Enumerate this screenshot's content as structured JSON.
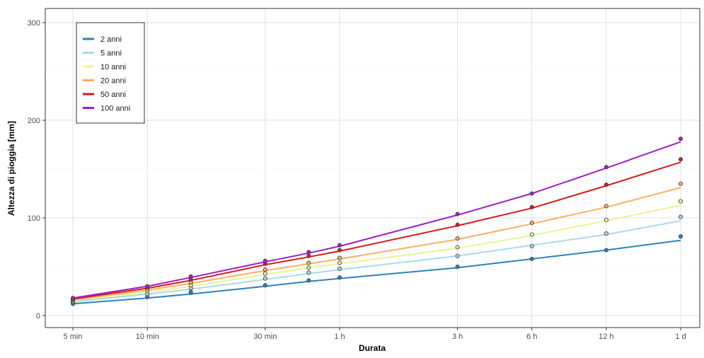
{
  "chart_data": {
    "type": "line",
    "xlabel": "Durata",
    "ylabel": "Altezza di pioggia [mm]",
    "x_scale": "log",
    "x_unit": "hours",
    "x_ticks": [
      {
        "value": 0.0833,
        "label": "5 min"
      },
      {
        "value": 0.1667,
        "label": "10 min"
      },
      {
        "value": 0.5,
        "label": "30 min"
      },
      {
        "value": 1,
        "label": "1 h"
      },
      {
        "value": 3,
        "label": "3 h"
      },
      {
        "value": 6,
        "label": "6 h"
      },
      {
        "value": 12,
        "label": "12 h"
      },
      {
        "value": 24,
        "label": "1 d"
      }
    ],
    "xlim": [
      0.0833,
      24
    ],
    "ylim": [
      0,
      300
    ],
    "y_ticks": [
      {
        "value": 0,
        "label": "0"
      },
      {
        "value": 100,
        "label": "100"
      },
      {
        "value": 200,
        "label": "200"
      },
      {
        "value": 300,
        "label": "300"
      }
    ],
    "grid": true,
    "legend_position": "top-left",
    "point_x": [
      0.0833,
      0.1667,
      0.25,
      0.5,
      0.75,
      1,
      3,
      6,
      12,
      24
    ],
    "curve_x": [
      0.0833,
      0.1667,
      0.25,
      0.5,
      0.75,
      1,
      3,
      6,
      12,
      24
    ],
    "series": [
      {
        "name": "2 anni",
        "color": "#2b83ba",
        "points": [
          12,
          19,
          24,
          31,
          36,
          39,
          50,
          58,
          67,
          81
        ],
        "curve": [
          12,
          18,
          22,
          30,
          35,
          38,
          49,
          58,
          67,
          77
        ]
      },
      {
        "name": "5 anni",
        "color": "#abd9e9",
        "points": [
          14,
          22,
          28,
          38,
          44,
          48,
          61,
          71,
          84,
          101
        ],
        "curve": [
          14,
          22,
          27,
          37,
          43,
          47,
          61,
          72,
          83,
          97
        ]
      },
      {
        "name": "10 anni",
        "color": "#e6f598",
        "points": [
          15,
          25,
          31,
          43,
          49,
          54,
          70,
          83,
          98,
          117
        ],
        "curve": [
          15,
          24,
          30,
          42,
          49,
          53,
          69,
          82,
          97,
          113
        ]
      },
      {
        "name": "20 anni",
        "color": "#fdae61",
        "points": [
          16,
          27,
          34,
          47,
          54,
          59,
          79,
          95,
          112,
          135
        ],
        "curve": [
          16,
          26,
          33,
          46,
          53,
          58,
          78,
          94,
          111,
          131
        ]
      },
      {
        "name": "50 anni",
        "color": "#d7191c",
        "points": [
          17,
          29,
          37,
          53,
          61,
          67,
          93,
          111,
          134,
          160
        ],
        "curve": [
          17,
          28,
          36,
          52,
          60,
          66,
          92,
          110,
          133,
          157
        ]
      },
      {
        "name": "100 anni",
        "color": "#9e1fc9",
        "points": [
          18,
          30,
          40,
          56,
          65,
          72,
          104,
          125,
          152,
          181
        ],
        "curve": [
          18,
          30,
          39,
          55,
          64,
          71,
          103,
          125,
          151,
          178
        ]
      }
    ]
  }
}
